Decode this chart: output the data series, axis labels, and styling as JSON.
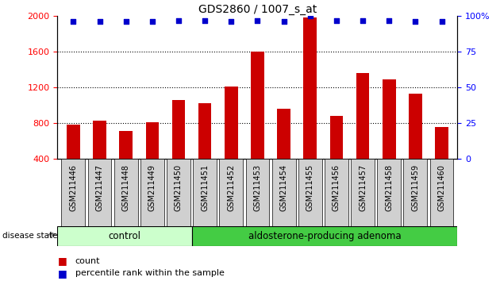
{
  "title": "GDS2860 / 1007_s_at",
  "samples": [
    "GSM211446",
    "GSM211447",
    "GSM211448",
    "GSM211449",
    "GSM211450",
    "GSM211451",
    "GSM211452",
    "GSM211453",
    "GSM211454",
    "GSM211455",
    "GSM211456",
    "GSM211457",
    "GSM211458",
    "GSM211459",
    "GSM211460"
  ],
  "counts": [
    780,
    830,
    710,
    810,
    1060,
    1020,
    1210,
    1600,
    960,
    1980,
    880,
    1360,
    1290,
    1130,
    760
  ],
  "percentiles": [
    96,
    96,
    96,
    96,
    97,
    97,
    96,
    97,
    96,
    100,
    97,
    97,
    97,
    96,
    96
  ],
  "ylim_left": [
    400,
    2000
  ],
  "ylim_right": [
    0,
    100
  ],
  "yticks_left": [
    400,
    800,
    1200,
    1600,
    2000
  ],
  "yticks_right": [
    0,
    25,
    50,
    75,
    100
  ],
  "bar_color": "#CC0000",
  "dot_color": "#0000CC",
  "bg_color": "#ffffff",
  "control_samples": 5,
  "control_label": "control",
  "adenoma_label": "aldosterone-producing adenoma",
  "disease_state_label": "disease state",
  "legend_count": "count",
  "legend_percentile": "percentile rank within the sample",
  "control_bg": "#ccffcc",
  "adenoma_bg": "#44cc44",
  "tick_label_bg": "#d0d0d0"
}
